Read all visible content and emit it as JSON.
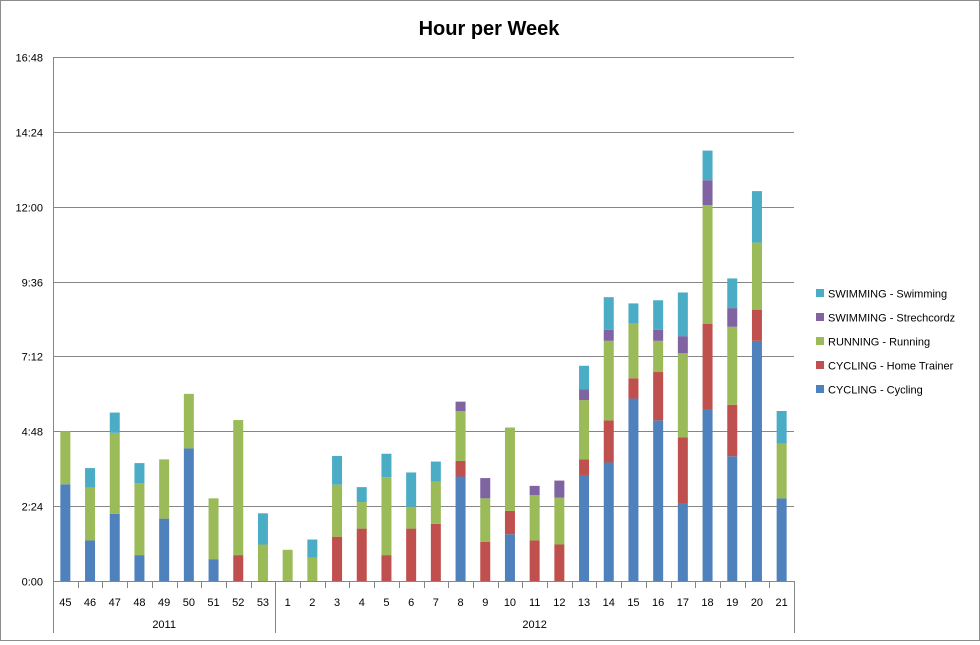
{
  "chart_data": {
    "type": "bar",
    "stacked": true,
    "title": "Hour per Week",
    "xlabel": "",
    "ylabel": "",
    "y_unit": "hours (h:mm)",
    "ylim": [
      0,
      16.8
    ],
    "y_ticks": [
      "0:00",
      "2:24",
      "4:48",
      "7:12",
      "9:36",
      "12:00",
      "14:24",
      "16:48"
    ],
    "grid": true,
    "legend_position": "right",
    "groups": [
      {
        "label": "2011",
        "categories": [
          "45",
          "46",
          "47",
          "48",
          "49",
          "50",
          "51",
          "52",
          "53"
        ]
      },
      {
        "label": "2012",
        "categories": [
          "1",
          "2",
          "3",
          "4",
          "5",
          "6",
          "7",
          "8",
          "9",
          "10",
          "11",
          "12",
          "13",
          "14",
          "15",
          "16",
          "17",
          "18",
          "19",
          "20",
          "21"
        ]
      }
    ],
    "categories": [
      "45",
      "46",
      "47",
      "48",
      "49",
      "50",
      "51",
      "52",
      "53",
      "1",
      "2",
      "3",
      "4",
      "5",
      "6",
      "7",
      "8",
      "9",
      "10",
      "11",
      "12",
      "13",
      "14",
      "15",
      "16",
      "17",
      "18",
      "19",
      "20",
      "21"
    ],
    "series": [
      {
        "name": "CYCLING - Cycling",
        "color": "#4f81bd",
        "values": [
          3.1,
          1.3,
          2.15,
          0.83,
          2.0,
          4.25,
          0.7,
          0,
          0,
          0,
          0,
          0,
          0,
          0,
          0,
          0,
          3.35,
          0,
          1.5,
          0,
          0,
          3.4,
          3.8,
          5.85,
          5.15,
          2.5,
          5.5,
          4.0,
          7.7,
          2.65
        ]
      },
      {
        "name": "CYCLING - Home Trainer",
        "color": "#c0504d",
        "values": [
          0,
          0,
          0,
          0,
          0,
          0,
          0,
          0.83,
          0,
          0,
          0,
          1.42,
          1.68,
          0.83,
          1.68,
          1.83,
          0.5,
          1.25,
          0.75,
          1.3,
          1.17,
          0.5,
          1.35,
          0.65,
          1.55,
          2.1,
          2.75,
          1.65,
          1.0,
          0
        ]
      },
      {
        "name": "RUNNING - Running",
        "color": "#9bbb59",
        "values": [
          1.7,
          1.7,
          2.6,
          2.3,
          1.9,
          1.75,
          1.95,
          4.33,
          1.17,
          1.0,
          0.75,
          1.67,
          0.85,
          2.5,
          0.7,
          1.35,
          1.6,
          1.4,
          2.67,
          1.45,
          1.5,
          1.9,
          2.55,
          1.75,
          1.0,
          2.7,
          3.8,
          2.5,
          2.15,
          1.75
        ]
      },
      {
        "name": "SWIMMING - Strechcordz",
        "color": "#8064a2",
        "values": [
          0,
          0,
          0,
          0,
          0,
          0,
          0,
          0,
          0,
          0,
          0,
          0,
          0,
          0,
          0,
          0,
          0.3,
          0.65,
          0,
          0.3,
          0.55,
          0.35,
          0.35,
          0,
          0.35,
          0.55,
          0.8,
          0.6,
          0,
          0
        ]
      },
      {
        "name": "SWIMMING - Swimming",
        "color": "#4bacc6",
        "values": [
          0,
          0.62,
          0.65,
          0.65,
          0,
          0,
          0,
          0,
          1.0,
          0,
          0.58,
          0.92,
          0.48,
          0.75,
          1.1,
          0.65,
          0,
          0,
          0,
          0,
          0,
          0.75,
          1.05,
          0.65,
          0.95,
          1.4,
          0.95,
          0.95,
          1.65,
          1.05
        ]
      }
    ],
    "legend_order": [
      "SWIMMING - Swimming",
      "SWIMMING - Strechcordz",
      "RUNNING - Running",
      "CYCLING - Home Trainer",
      "CYCLING - Cycling"
    ]
  }
}
